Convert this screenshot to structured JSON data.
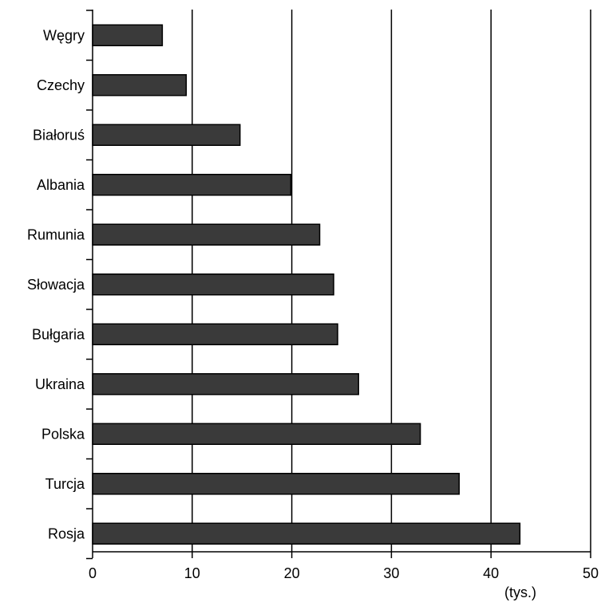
{
  "chart_data": {
    "type": "bar",
    "orientation": "horizontal",
    "categories": [
      "Węgry",
      "Czechy",
      "Białoruś",
      "Albania",
      "Rumunia",
      "Słowacja",
      "Bułgaria",
      "Ukraina",
      "Polska",
      "Turcja",
      "Rosja"
    ],
    "values": [
      7.0,
      9.4,
      14.8,
      19.9,
      22.8,
      24.2,
      24.6,
      26.7,
      32.9,
      36.8,
      42.9
    ],
    "x_ticks": [
      "0",
      "10",
      "20",
      "30",
      "40",
      "50"
    ],
    "xlim": [
      0,
      50
    ],
    "unit_label": "(tys.)",
    "title": "",
    "xlabel": "",
    "ylabel": "",
    "grid": "vertical",
    "legend": "none",
    "bar_color": "#3a3a3a"
  }
}
